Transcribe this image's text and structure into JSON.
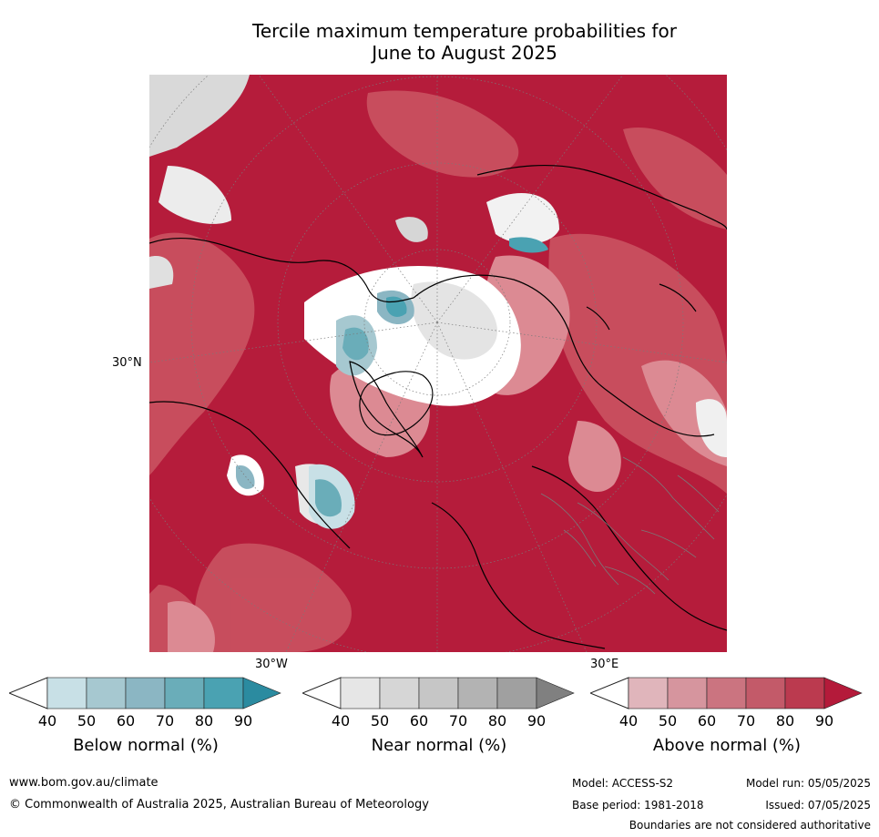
{
  "title_line1": "Tercile maximum temperature probabilities for",
  "title_line2": "June to August 2025",
  "map": {
    "projection": "north-polar stereographic",
    "labels": {
      "lat30n": "30°N",
      "lon30w": "30°W",
      "lon30e": "30°E"
    },
    "colors": {
      "above_dark": "#b51c3b",
      "above_mid": "#c9505f",
      "above_light": "#dc8a93",
      "near": "#d9d9d9",
      "below": "#4aa2b2",
      "white": "#ffffff"
    }
  },
  "colorbars": [
    {
      "name": "below",
      "label": "Below normal (%)",
      "ticks": [
        "40",
        "50",
        "60",
        "70",
        "80",
        "90"
      ],
      "colors": [
        "#c8e0e6",
        "#a6c8d0",
        "#8bb6c3",
        "#6aadb9",
        "#4aa2b2",
        "#2b8ba0"
      ]
    },
    {
      "name": "near",
      "label": "Near normal (%)",
      "ticks": [
        "40",
        "50",
        "60",
        "70",
        "80",
        "90"
      ],
      "colors": [
        "#e6e6e6",
        "#d6d6d6",
        "#c6c6c6",
        "#b3b3b3",
        "#a0a0a0",
        "#808080"
      ]
    },
    {
      "name": "above",
      "label": "Above normal (%)",
      "ticks": [
        "40",
        "50",
        "60",
        "70",
        "80",
        "90"
      ],
      "colors": [
        "#e0b5bb",
        "#d6959e",
        "#cb7480",
        "#c35a69",
        "#bb3a4f",
        "#b41a3a"
      ]
    }
  ],
  "footer": {
    "website": "www.bom.gov.au/climate",
    "copyright": "© Commonwealth of Australia 2025, Australian Bureau of Meteorology",
    "model": "Model: ACCESS-S2",
    "model_run": "Model run: 05/05/2025",
    "base_period": "Base period: 1981-2018",
    "issued": "Issued: 07/05/2025",
    "disclaimer": "Boundaries are not considered authoritative"
  }
}
